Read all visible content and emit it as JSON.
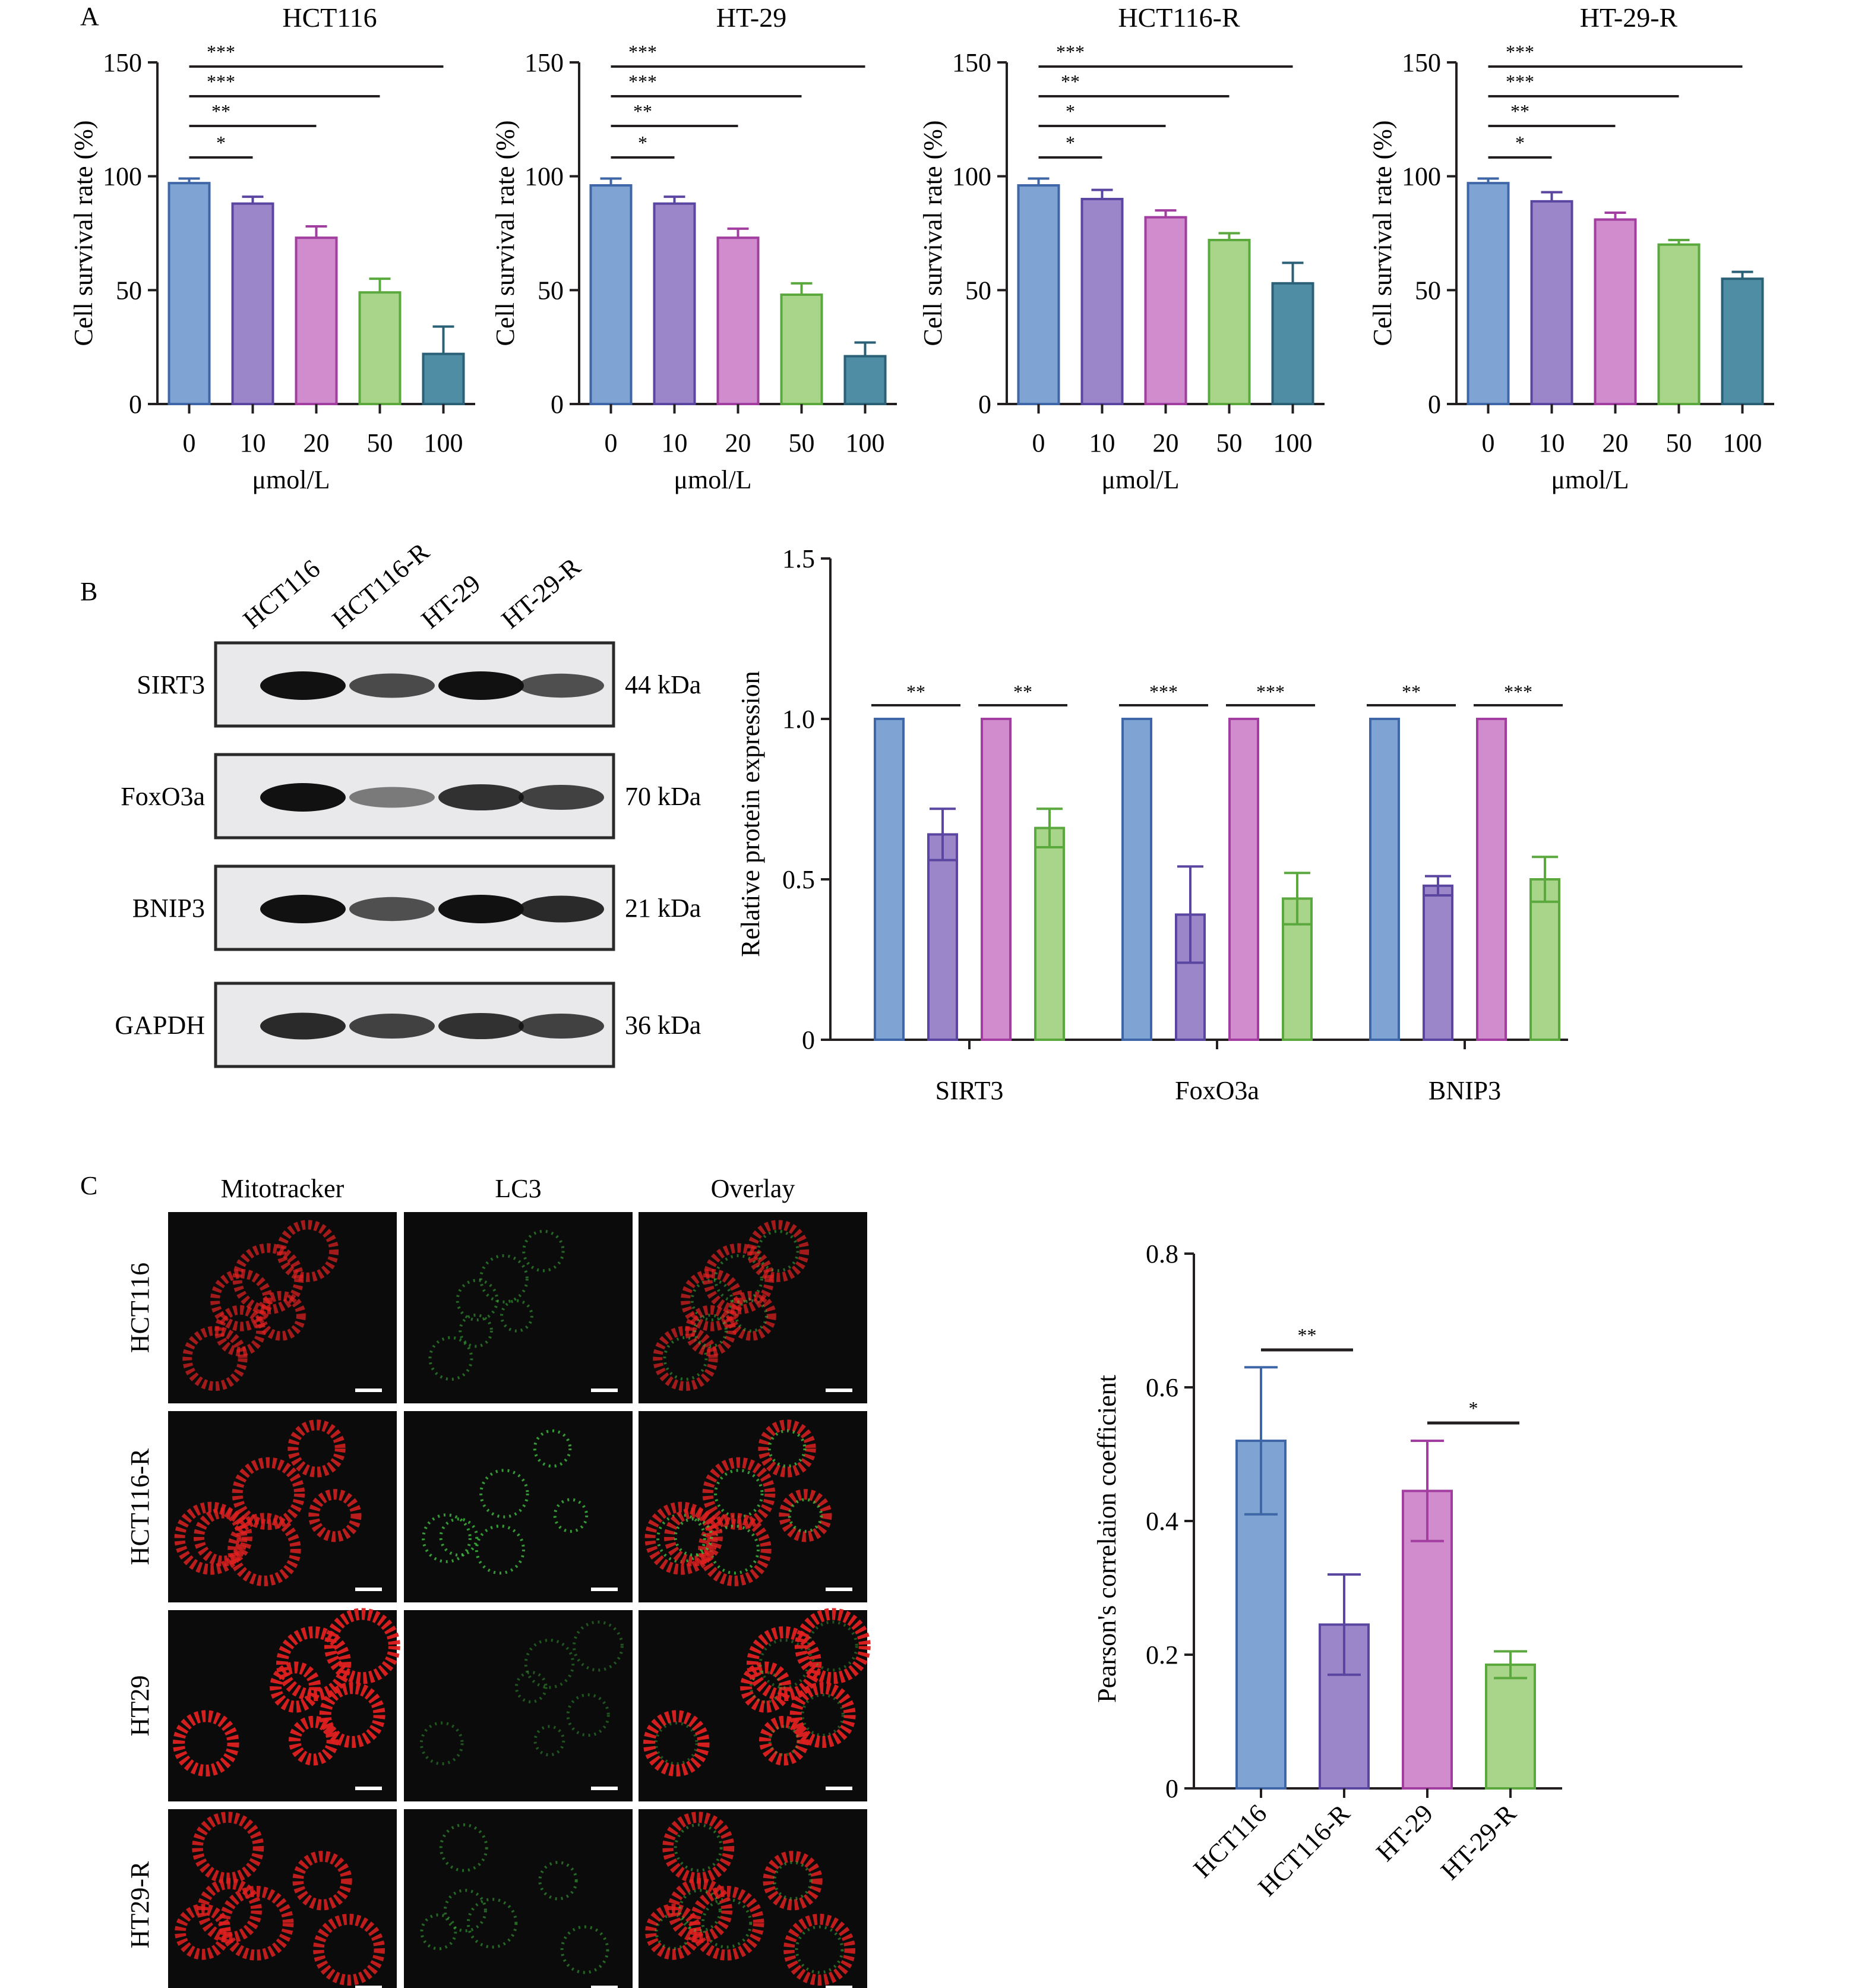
{
  "colors": {
    "blue": "#7fa4d3",
    "blue_edge": "#3f66a6",
    "purple": "#9a86c9",
    "purple_edge": "#5a46a0",
    "magenta": "#d08ccc",
    "magenta_edge": "#a23ea0",
    "green": "#a9d58a",
    "green_edge": "#5aa83e",
    "teal": "#4f8da5",
    "teal_edge": "#2a6176",
    "mito_red": "#e02020",
    "lc3_green": "#3fbf3f"
  },
  "panels": {
    "a": "A",
    "b": "B",
    "c": "C"
  },
  "chart_data": [
    {
      "type": "bar",
      "title": "HCT116",
      "xlabel": "μmol/L",
      "ylabel": "Cell survival rate (%)",
      "categories": [
        "0",
        "10",
        "20",
        "50",
        "100"
      ],
      "values": [
        97,
        88,
        73,
        49,
        22
      ],
      "errors": [
        2,
        3,
        5,
        6,
        12
      ],
      "ylim": [
        0,
        150
      ],
      "yticks": [
        0,
        50,
        100,
        150
      ],
      "significance": [
        {
          "from": 0,
          "to": 1,
          "label": "*"
        },
        {
          "from": 0,
          "to": 2,
          "label": "**"
        },
        {
          "from": 0,
          "to": 3,
          "label": "***"
        },
        {
          "from": 0,
          "to": 4,
          "label": "***"
        }
      ]
    },
    {
      "type": "bar",
      "title": "HT-29",
      "xlabel": "μmol/L",
      "ylabel": "Cell survival rate (%)",
      "categories": [
        "0",
        "10",
        "20",
        "50",
        "100"
      ],
      "values": [
        96,
        88,
        73,
        48,
        21
      ],
      "errors": [
        3,
        3,
        4,
        5,
        6
      ],
      "ylim": [
        0,
        150
      ],
      "yticks": [
        0,
        50,
        100,
        150
      ],
      "significance": [
        {
          "from": 0,
          "to": 1,
          "label": "*"
        },
        {
          "from": 0,
          "to": 2,
          "label": "**"
        },
        {
          "from": 0,
          "to": 3,
          "label": "***"
        },
        {
          "from": 0,
          "to": 4,
          "label": "***"
        }
      ]
    },
    {
      "type": "bar",
      "title": "HCT116-R",
      "xlabel": "μmol/L",
      "ylabel": "Cell survival rate (%)",
      "categories": [
        "0",
        "10",
        "20",
        "50",
        "100"
      ],
      "values": [
        96,
        90,
        82,
        72,
        53
      ],
      "errors": [
        3,
        4,
        3,
        3,
        9
      ],
      "ylim": [
        0,
        150
      ],
      "yticks": [
        0,
        50,
        100,
        150
      ],
      "significance": [
        {
          "from": 0,
          "to": 1,
          "label": "*"
        },
        {
          "from": 0,
          "to": 2,
          "label": "*"
        },
        {
          "from": 0,
          "to": 3,
          "label": "**"
        },
        {
          "from": 0,
          "to": 4,
          "label": "***"
        }
      ]
    },
    {
      "type": "bar",
      "title": "HT-29-R",
      "xlabel": "μmol/L",
      "ylabel": "Cell survival rate (%)",
      "categories": [
        "0",
        "10",
        "20",
        "50",
        "100"
      ],
      "values": [
        97,
        89,
        81,
        70,
        55
      ],
      "errors": [
        2,
        4,
        3,
        2,
        3
      ],
      "ylim": [
        0,
        150
      ],
      "yticks": [
        0,
        50,
        100,
        150
      ],
      "significance": [
        {
          "from": 0,
          "to": 1,
          "label": "*"
        },
        {
          "from": 0,
          "to": 2,
          "label": "**"
        },
        {
          "from": 0,
          "to": 3,
          "label": "***"
        },
        {
          "from": 0,
          "to": 4,
          "label": "***"
        }
      ]
    },
    {
      "type": "bar",
      "ylabel": "Relative protein expression",
      "categories": [
        "SIRT3",
        "FoxO3a",
        "BNIP3"
      ],
      "series": [
        {
          "values": [
            1.0,
            1.0,
            1.0
          ],
          "errors": [
            0,
            0,
            0
          ]
        },
        {
          "values": [
            0.64,
            0.39,
            0.48
          ],
          "errors": [
            0.08,
            0.15,
            0.03
          ]
        },
        {
          "values": [
            1.0,
            1.0,
            1.0
          ],
          "errors": [
            0,
            0,
            0
          ]
        },
        {
          "values": [
            0.66,
            0.44,
            0.5
          ],
          "errors": [
            0.06,
            0.08,
            0.07
          ]
        }
      ],
      "ylim": [
        0,
        1.5
      ],
      "yticks": [
        "0",
        "0.5",
        "1.0",
        "1.5"
      ],
      "significance": [
        {
          "category": 0,
          "pair": [
            0,
            1
          ],
          "label": "**"
        },
        {
          "category": 0,
          "pair": [
            2,
            3
          ],
          "label": "**"
        },
        {
          "category": 1,
          "pair": [
            0,
            1
          ],
          "label": "***"
        },
        {
          "category": 1,
          "pair": [
            2,
            3
          ],
          "label": "***"
        },
        {
          "category": 2,
          "pair": [
            0,
            1
          ],
          "label": "**"
        },
        {
          "category": 2,
          "pair": [
            2,
            3
          ],
          "label": "***"
        }
      ]
    },
    {
      "type": "bar",
      "ylabel": "Pearson's correlaion coefficient",
      "categories": [
        "HCT116",
        "HCT116-R",
        "HT-29",
        "HT-29-R"
      ],
      "values": [
        0.52,
        0.245,
        0.445,
        0.185
      ],
      "errors": [
        0.11,
        0.075,
        0.075,
        0.02
      ],
      "ylim": [
        0,
        0.8
      ],
      "yticks": [
        "0",
        "0.2",
        "0.4",
        "0.6",
        "0.8"
      ],
      "significance": [
        {
          "from": 0,
          "to": 1,
          "label": "**"
        },
        {
          "from": 2,
          "to": 3,
          "label": "*"
        }
      ]
    }
  ],
  "western_blot": {
    "lanes": [
      "HCT116",
      "HCT116-R",
      "HT-29",
      "HT-29-R"
    ],
    "rows": [
      {
        "protein": "SIRT3",
        "size": "44 kDa",
        "intensity": [
          1.0,
          0.65,
          1.0,
          0.62
        ]
      },
      {
        "protein": "FoxO3a",
        "size": "70 kDa",
        "intensity": [
          1.0,
          0.35,
          0.8,
          0.7
        ]
      },
      {
        "protein": "BNIP3",
        "size": "21 kDa",
        "intensity": [
          1.0,
          0.62,
          1.0,
          0.85
        ]
      },
      {
        "protein": "GAPDH",
        "size": "36 kDa",
        "intensity": [
          0.85,
          0.7,
          0.8,
          0.7
        ]
      }
    ]
  },
  "microscopy": {
    "columns": [
      "Mitotracker",
      "LC3",
      "Overlay"
    ],
    "rows": [
      "HCT116",
      "HCT116-R",
      "HT29",
      "HT29-R"
    ],
    "mito_intensity": [
      0.6,
      0.8,
      1.0,
      0.85
    ],
    "lc3_intensity": [
      0.45,
      0.85,
      0.3,
      0.45
    ]
  }
}
